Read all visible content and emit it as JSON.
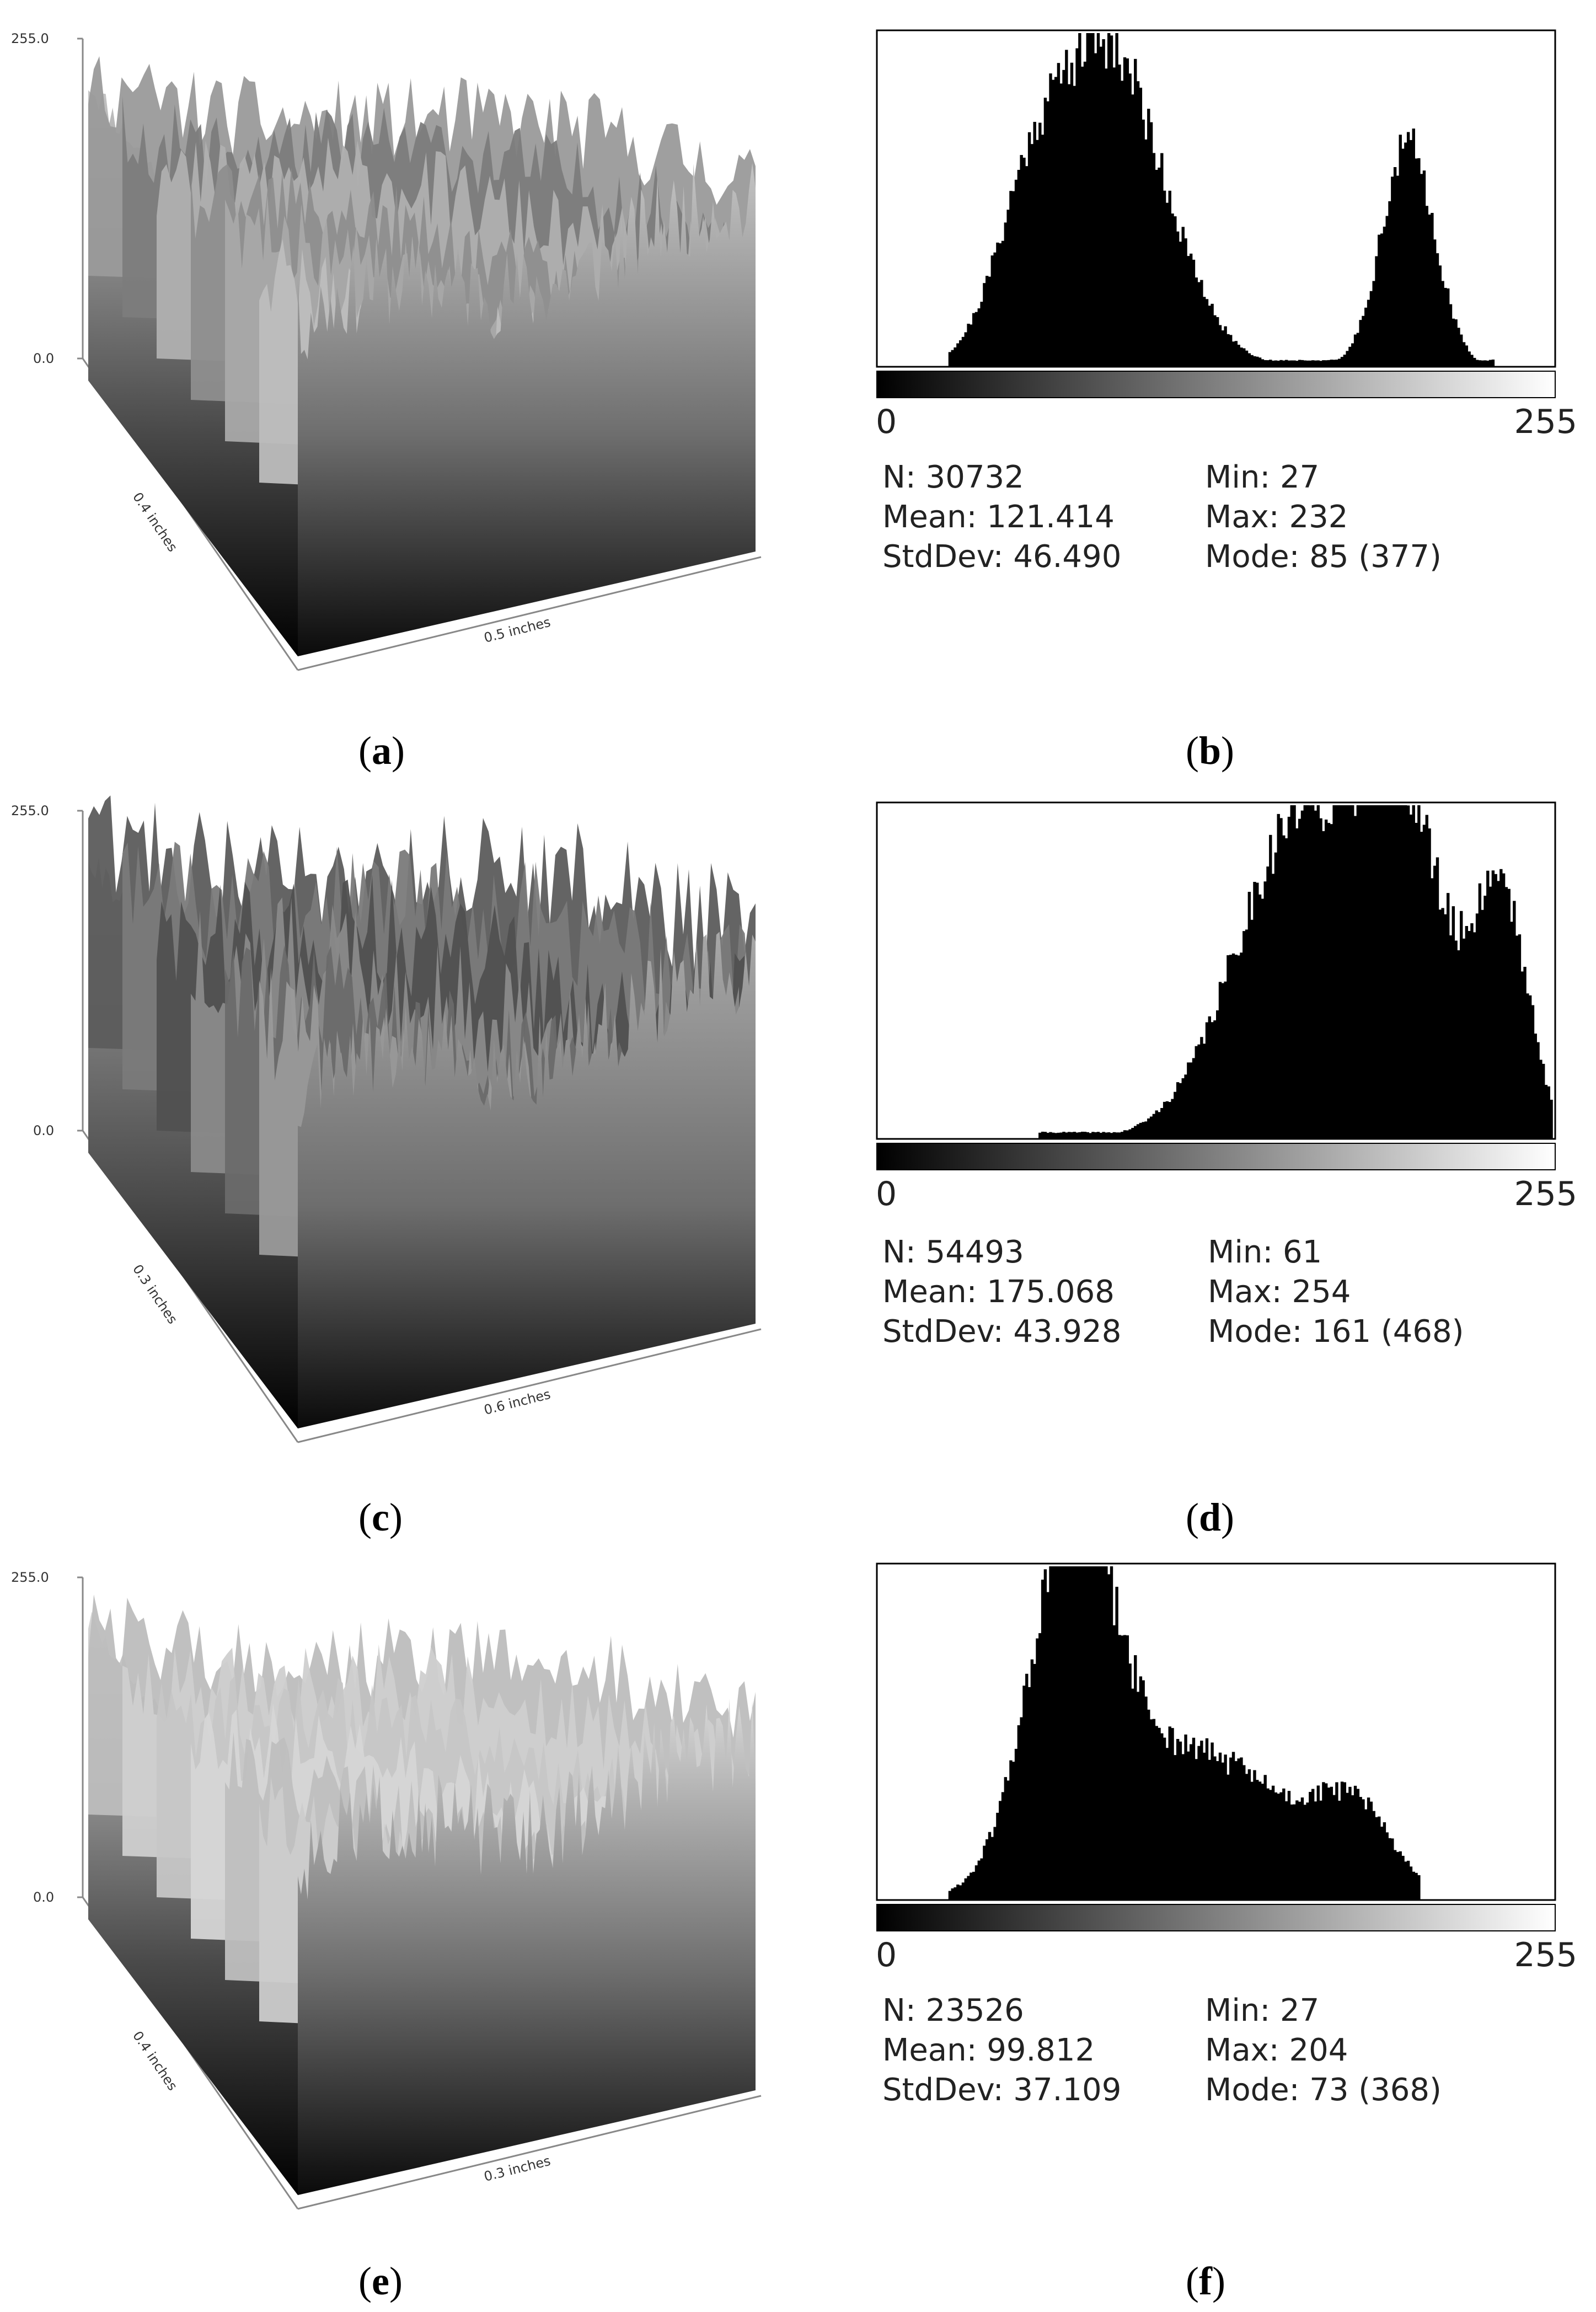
{
  "chart_data": [
    {
      "panel": "a",
      "type": "surface",
      "z_top_label": "255.0",
      "z_bottom_label": "0.0",
      "depth_label": "0.4 inches",
      "width_label": "0.5 inches",
      "shade": "mixed"
    },
    {
      "panel": "b",
      "type": "bar",
      "x_min_label": "0",
      "x_max_label": "255",
      "xlim": [
        0,
        255
      ],
      "peaks": [
        {
          "center": 85,
          "width": 22,
          "height": 1.0
        },
        {
          "center": 200,
          "width": 10,
          "height": 0.68
        },
        {
          "center": 55,
          "width": 12,
          "height": 0.25
        }
      ],
      "range": [
        27,
        232
      ],
      "stats": {
        "n": "N: 30732",
        "mean": "Mean: 121.414",
        "stddev": "StdDev: 46.490",
        "min": "Min: 27",
        "max": "Max: 232",
        "mode": "Mode: 85 (377)"
      }
    },
    {
      "panel": "c",
      "type": "surface",
      "z_top_label": "255.0",
      "z_bottom_label": "0.0",
      "depth_label": "0.3 inches",
      "width_label": "0.6 inches",
      "shade": "dark"
    },
    {
      "panel": "d",
      "type": "bar",
      "x_min_label": "0",
      "x_max_label": "255",
      "xlim": [
        0,
        255
      ],
      "peaks": [
        {
          "center": 161,
          "width": 25,
          "height": 1.0
        },
        {
          "center": 200,
          "width": 15,
          "height": 0.8
        },
        {
          "center": 235,
          "width": 10,
          "height": 0.75
        }
      ],
      "range": [
        61,
        254
      ],
      "stats": {
        "n": "N: 54493",
        "mean": "Mean: 175.068",
        "stddev": "StdDev: 43.928",
        "min": "Min: 61",
        "max": "Max: 254",
        "mode": "Mode: 161 (468)"
      }
    },
    {
      "panel": "e",
      "type": "surface",
      "z_top_label": "255.0",
      "z_bottom_label": "0.0",
      "depth_label": "0.4 inches",
      "width_label": "0.3 inches",
      "shade": "light"
    },
    {
      "panel": "f",
      "type": "bar",
      "x_min_label": "0",
      "x_max_label": "255",
      "xlim": [
        0,
        255
      ],
      "peaks": [
        {
          "center": 73,
          "width": 16,
          "height": 1.0
        },
        {
          "center": 120,
          "width": 35,
          "height": 0.45
        },
        {
          "center": 180,
          "width": 14,
          "height": 0.22
        }
      ],
      "range": [
        27,
        204
      ],
      "stats": {
        "n": "N: 23526",
        "mean": "Mean: 99.812",
        "stddev": "StdDev: 37.109",
        "min": "Min: 27",
        "max": "Max: 204",
        "mode": "Mode: 73 (368)"
      }
    }
  ],
  "captions": {
    "a": "(a)",
    "b": "(b)",
    "c": "(c)",
    "d": "(d)",
    "e": "(e)",
    "f": "(f)"
  }
}
